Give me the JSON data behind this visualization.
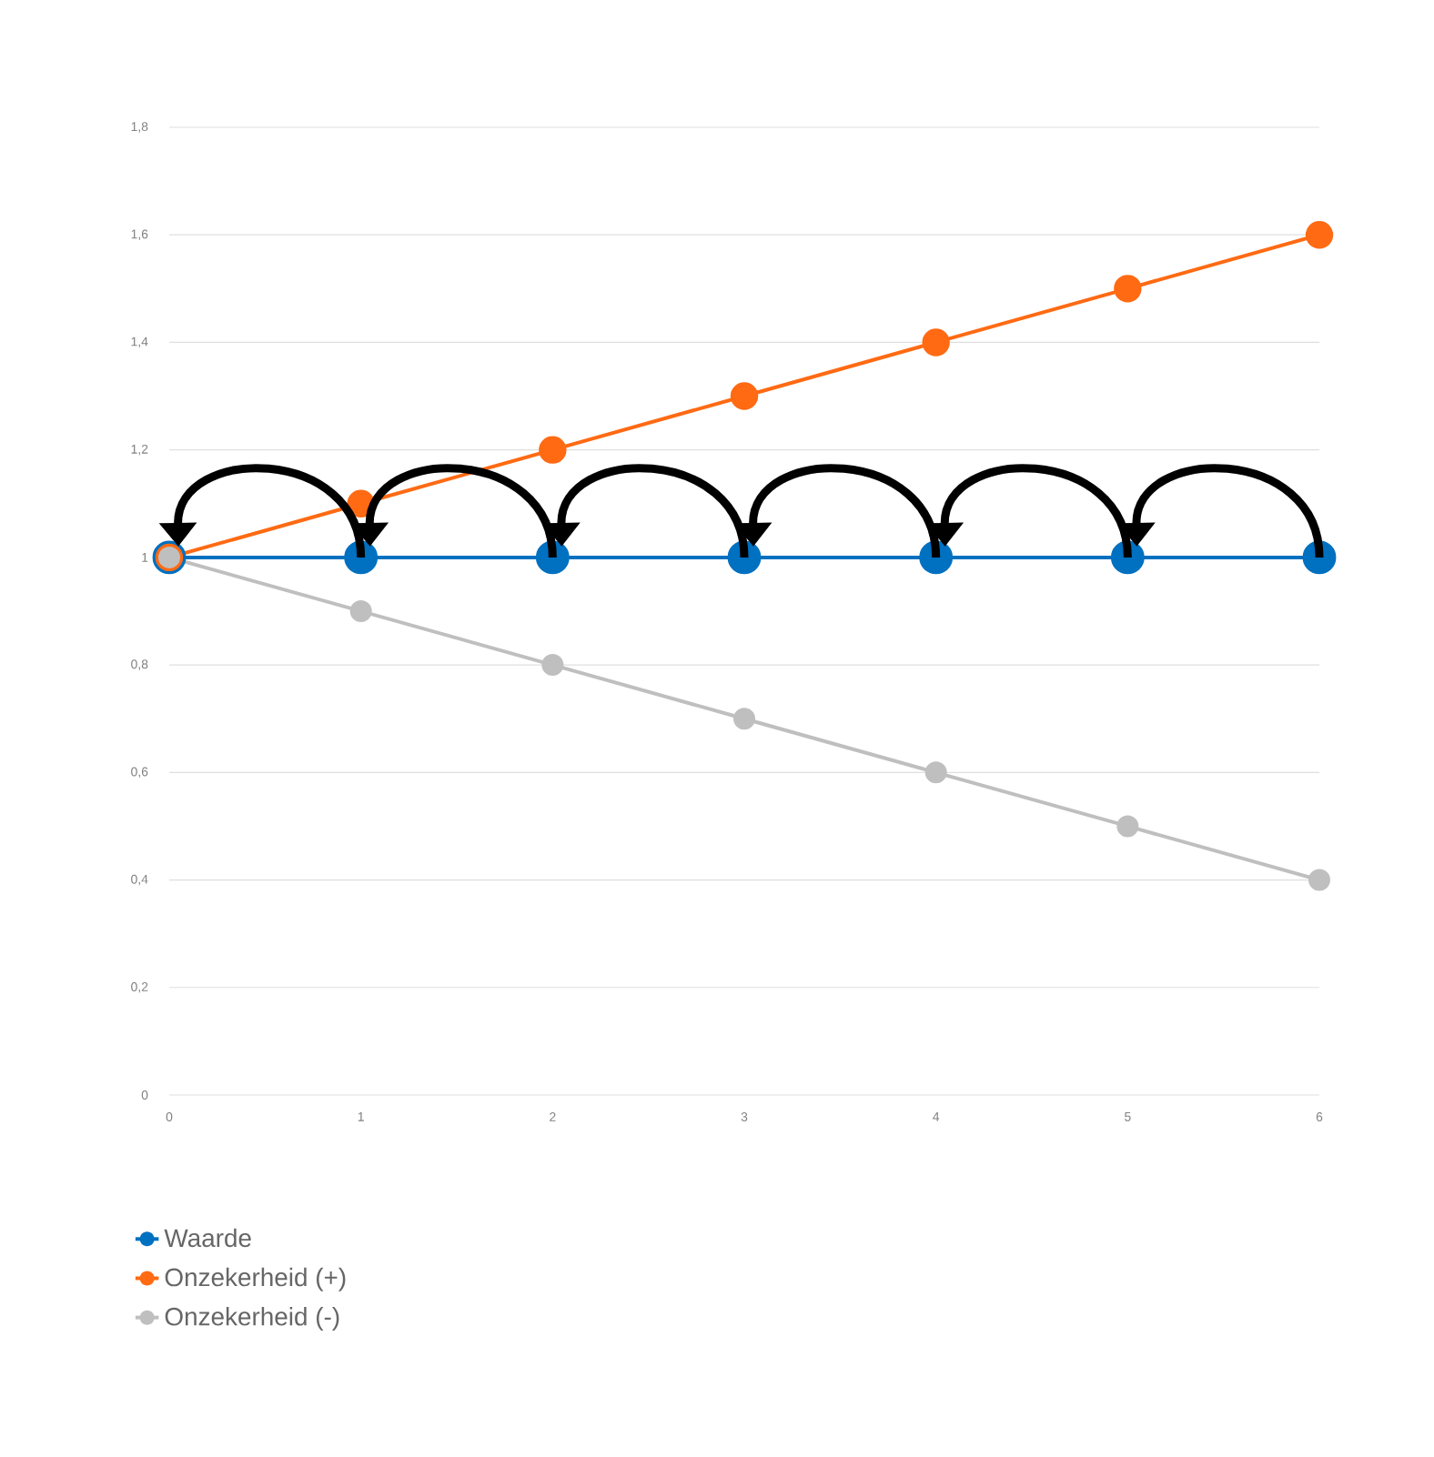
{
  "chart_data": {
    "type": "line",
    "x": [
      0,
      1,
      2,
      3,
      4,
      5,
      6
    ],
    "series": [
      {
        "name": "Waarde",
        "color": "#0070c0",
        "values": [
          1,
          1,
          1,
          1,
          1,
          1,
          1
        ]
      },
      {
        "name": "Onzekerheid (+)",
        "color": "#ff6a13",
        "values": [
          1,
          1.1,
          1.2,
          1.3,
          1.4,
          1.5,
          1.6
        ]
      },
      {
        "name": "Onzekerheid (-)",
        "color": "#bfbfbf",
        "values": [
          1,
          0.9,
          0.8,
          0.7,
          0.6,
          0.5,
          0.4
        ]
      }
    ],
    "xlim": [
      0,
      6
    ],
    "xticks": [
      0,
      1,
      2,
      3,
      4,
      5,
      6
    ],
    "ylim": [
      0,
      1.8
    ],
    "yticks": [
      0,
      {
        "value": 0.2,
        "label": "0,2"
      },
      {
        "value": 0.4,
        "label": "0,4"
      },
      {
        "value": 0.6,
        "label": "0,6"
      },
      {
        "value": 0.8,
        "label": "0,8"
      },
      1,
      {
        "value": 1.2,
        "label": "1,2"
      },
      {
        "value": 1.4,
        "label": "1,4"
      },
      {
        "value": 1.6,
        "label": "1,6"
      },
      {
        "value": 1.8,
        "label": "1,8"
      }
    ],
    "grid": "y",
    "legend": "bottom left",
    "marker": "circle",
    "line_style": "solid"
  }
}
